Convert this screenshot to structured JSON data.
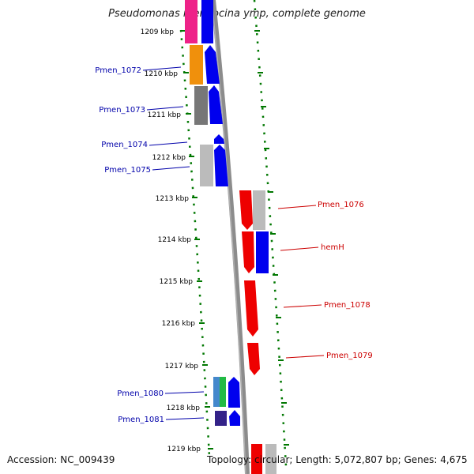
{
  "title": "Pseudomonas mendocina ymp, complete genome",
  "footer": {
    "accession": "Accession: NC_009439",
    "summary": "Topology: circular; Length: 5,072,807 bp; Genes: 4,675"
  },
  "colors": {
    "left_label": "#0000aa",
    "right_label": "#cc0000",
    "scale": "#007700",
    "backbone": "#8c8c8c"
  },
  "ticks": [
    "1209 kbp",
    "1210 kbp",
    "1211 kbp",
    "1212 kbp",
    "1213 kbp",
    "1214 kbp",
    "1215 kbp",
    "1216 kbp",
    "1217 kbp",
    "1218 kbp",
    "1219 kbp"
  ],
  "left_labels": [
    "Pmen_1072",
    "Pmen_1073",
    "Pmen_1074",
    "Pmen_1075",
    "Pmen_1080",
    "Pmen_1081"
  ],
  "right_labels": [
    "Pmen_1076",
    "hemH",
    "Pmen_1078",
    "Pmen_1079"
  ]
}
